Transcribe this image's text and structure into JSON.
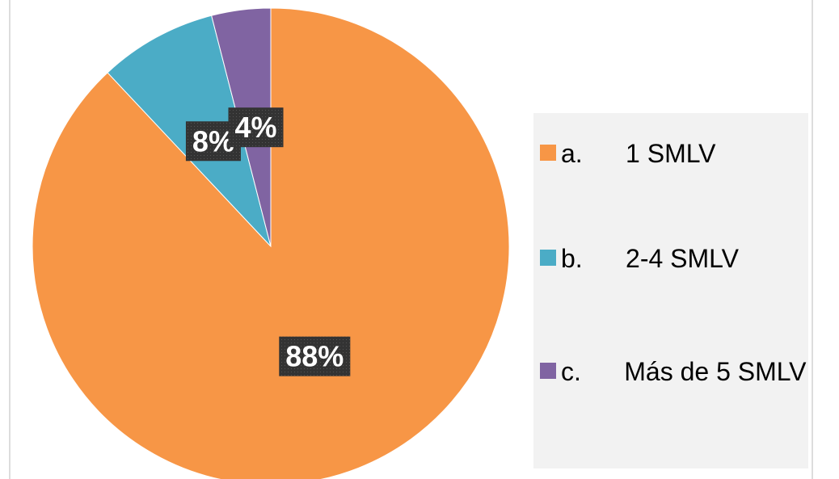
{
  "chart_data": {
    "type": "pie",
    "categories": [
      "a.      1 SMLV",
      "b.      2-4 SMLV",
      "c.      Más de 5 SMLV"
    ],
    "values": [
      88,
      8,
      4
    ],
    "value_labels": [
      "88%",
      "8%",
      "4%"
    ],
    "colors": [
      "#f79646",
      "#4bacc6",
      "#8064a2"
    ],
    "legend": "right"
  }
}
